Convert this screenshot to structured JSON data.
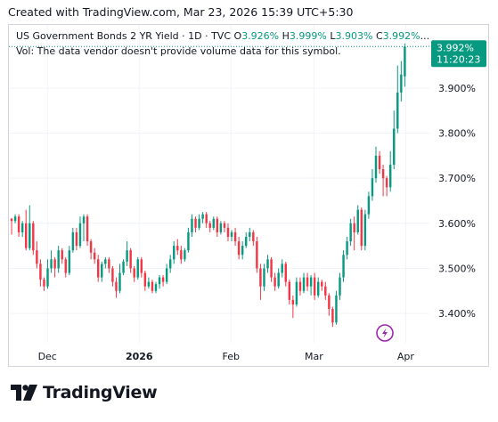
{
  "header": {
    "created_text": "Created with TradingView.com, Mar 23, 2026 15:39 UTC+5:30"
  },
  "legend": {
    "symbol": "US Government Bonds 2 YR Yield · 1D · TVC",
    "open_label": "O",
    "open_value": "3.926%",
    "high_label": "H",
    "high_value": "3.999%",
    "low_label": "L",
    "low_value": "3.903%",
    "close_label": "C",
    "close_value": "3.992%",
    "ellipsis": "..."
  },
  "volume_note": "Vol: The data vendor doesn't provide volume data for this symbol.",
  "price_badge": {
    "price": "3.992%",
    "countdown": "11:20:23"
  },
  "logo": {
    "text": "TradingView"
  },
  "colors": {
    "up": "#089981",
    "down": "#f23645",
    "grid": "#f0f3fa",
    "badge": "#089981",
    "lightning": "#9c27b0"
  },
  "icons": {
    "lightning": "lightning-icon",
    "logo": "tradingview-logo-icon"
  },
  "chart_data": {
    "type": "candlestick",
    "y_ticks": [
      "3.900%",
      "3.800%",
      "3.700%",
      "3.600%",
      "3.500%",
      "3.400%"
    ],
    "y_tick_values": [
      3.9,
      3.8,
      3.7,
      3.6,
      3.5,
      3.4
    ],
    "ylim": [
      3.335,
      4.04
    ],
    "x_ticks": [
      "Dec",
      "2026",
      "Feb",
      "Mar",
      "Apr"
    ],
    "x_tick_days": [
      13,
      44,
      75,
      103,
      134
    ],
    "x_range_days": [
      0,
      142
    ],
    "last_price": 3.992,
    "candles": [
      [
        3.61,
        3.605,
        3.612,
        3.575
      ],
      [
        3.605,
        3.615,
        3.62,
        3.6
      ],
      [
        3.615,
        3.58,
        3.62,
        3.57
      ],
      [
        3.58,
        3.6,
        3.605,
        3.57
      ],
      [
        3.6,
        3.545,
        3.63,
        3.54
      ],
      [
        3.545,
        3.6,
        3.64,
        3.54
      ],
      [
        3.6,
        3.54,
        3.605,
        3.53
      ],
      [
        3.54,
        3.51,
        3.56,
        3.5
      ],
      [
        3.51,
        3.475,
        3.52,
        3.46
      ],
      [
        3.475,
        3.46,
        3.48,
        3.45
      ],
      [
        3.46,
        3.5,
        3.52,
        3.455
      ],
      [
        3.5,
        3.52,
        3.54,
        3.49
      ],
      [
        3.52,
        3.5,
        3.525,
        3.48
      ],
      [
        3.5,
        3.54,
        3.55,
        3.49
      ],
      [
        3.54,
        3.52,
        3.545,
        3.51
      ],
      [
        3.52,
        3.49,
        3.525,
        3.48
      ],
      [
        3.49,
        3.54,
        3.55,
        3.485
      ],
      [
        3.54,
        3.58,
        3.59,
        3.535
      ],
      [
        3.58,
        3.55,
        3.59,
        3.54
      ],
      [
        3.55,
        3.6,
        3.615,
        3.545
      ],
      [
        3.6,
        3.615,
        3.62,
        3.56
      ],
      [
        3.615,
        3.56,
        3.62,
        3.55
      ],
      [
        3.56,
        3.535,
        3.565,
        3.52
      ],
      [
        3.535,
        3.52,
        3.545,
        3.51
      ],
      [
        3.52,
        3.48,
        3.53,
        3.47
      ],
      [
        3.48,
        3.51,
        3.515,
        3.47
      ],
      [
        3.51,
        3.52,
        3.525,
        3.5
      ],
      [
        3.52,
        3.5,
        3.525,
        3.49
      ],
      [
        3.5,
        3.47,
        3.505,
        3.46
      ],
      [
        3.47,
        3.45,
        3.48,
        3.435
      ],
      [
        3.45,
        3.49,
        3.51,
        3.445
      ],
      [
        3.49,
        3.515,
        3.52,
        3.485
      ],
      [
        3.515,
        3.54,
        3.56,
        3.505
      ],
      [
        3.54,
        3.5,
        3.545,
        3.49
      ],
      [
        3.5,
        3.48,
        3.505,
        3.47
      ],
      [
        3.48,
        3.52,
        3.525,
        3.475
      ],
      [
        3.52,
        3.49,
        3.525,
        3.48
      ],
      [
        3.49,
        3.46,
        3.495,
        3.45
      ],
      [
        3.46,
        3.47,
        3.48,
        3.455
      ],
      [
        3.47,
        3.45,
        3.475,
        3.445
      ],
      [
        3.45,
        3.465,
        3.47,
        3.445
      ],
      [
        3.465,
        3.48,
        3.485,
        3.455
      ],
      [
        3.48,
        3.47,
        3.485,
        3.46
      ],
      [
        3.47,
        3.5,
        3.51,
        3.465
      ],
      [
        3.5,
        3.52,
        3.53,
        3.49
      ],
      [
        3.52,
        3.55,
        3.56,
        3.51
      ],
      [
        3.55,
        3.54,
        3.565,
        3.53
      ],
      [
        3.54,
        3.52,
        3.55,
        3.51
      ],
      [
        3.52,
        3.54,
        3.545,
        3.515
      ],
      [
        3.54,
        3.58,
        3.59,
        3.535
      ],
      [
        3.58,
        3.61,
        3.62,
        3.57
      ],
      [
        3.61,
        3.59,
        3.615,
        3.58
      ],
      [
        3.59,
        3.61,
        3.62,
        3.585
      ],
      [
        3.61,
        3.62,
        3.625,
        3.6
      ],
      [
        3.62,
        3.6,
        3.625,
        3.59
      ],
      [
        3.6,
        3.59,
        3.605,
        3.58
      ],
      [
        3.59,
        3.61,
        3.615,
        3.585
      ],
      [
        3.61,
        3.58,
        3.615,
        3.57
      ],
      [
        3.58,
        3.6,
        3.605,
        3.575
      ],
      [
        3.6,
        3.59,
        3.605,
        3.58
      ],
      [
        3.59,
        3.57,
        3.6,
        3.56
      ],
      [
        3.57,
        3.58,
        3.585,
        3.56
      ],
      [
        3.58,
        3.56,
        3.59,
        3.55
      ],
      [
        3.56,
        3.53,
        3.57,
        3.52
      ],
      [
        3.53,
        3.55,
        3.56,
        3.52
      ],
      [
        3.55,
        3.57,
        3.58,
        3.545
      ],
      [
        3.57,
        3.58,
        3.59,
        3.56
      ],
      [
        3.58,
        3.56,
        3.585,
        3.55
      ],
      [
        3.56,
        3.5,
        3.57,
        3.49
      ],
      [
        3.5,
        3.46,
        3.51,
        3.43
      ],
      [
        3.46,
        3.5,
        3.51,
        3.45
      ],
      [
        3.5,
        3.52,
        3.53,
        3.49
      ],
      [
        3.52,
        3.48,
        3.525,
        3.47
      ],
      [
        3.48,
        3.46,
        3.49,
        3.45
      ],
      [
        3.46,
        3.49,
        3.5,
        3.455
      ],
      [
        3.49,
        3.51,
        3.52,
        3.48
      ],
      [
        3.51,
        3.47,
        3.515,
        3.46
      ],
      [
        3.47,
        3.43,
        3.475,
        3.42
      ],
      [
        3.43,
        3.42,
        3.44,
        3.39
      ],
      [
        3.42,
        3.47,
        3.48,
        3.415
      ],
      [
        3.47,
        3.45,
        3.48,
        3.44
      ],
      [
        3.45,
        3.48,
        3.49,
        3.445
      ],
      [
        3.48,
        3.46,
        3.49,
        3.45
      ],
      [
        3.46,
        3.48,
        3.485,
        3.44
      ],
      [
        3.48,
        3.44,
        3.49,
        3.43
      ],
      [
        3.44,
        3.47,
        3.48,
        3.435
      ],
      [
        3.47,
        3.46,
        3.475,
        3.45
      ],
      [
        3.46,
        3.44,
        3.47,
        3.43
      ],
      [
        3.44,
        3.41,
        3.445,
        3.395
      ],
      [
        3.41,
        3.38,
        3.415,
        3.37
      ],
      [
        3.38,
        3.44,
        3.45,
        3.375
      ],
      [
        3.44,
        3.48,
        3.49,
        3.43
      ],
      [
        3.48,
        3.53,
        3.54,
        3.47
      ],
      [
        3.53,
        3.56,
        3.57,
        3.52
      ],
      [
        3.56,
        3.6,
        3.61,
        3.55
      ],
      [
        3.6,
        3.58,
        3.615,
        3.54
      ],
      [
        3.58,
        3.63,
        3.64,
        3.575
      ],
      [
        3.63,
        3.55,
        3.635,
        3.54
      ],
      [
        3.55,
        3.62,
        3.63,
        3.54
      ],
      [
        3.62,
        3.66,
        3.67,
        3.61
      ],
      [
        3.66,
        3.7,
        3.72,
        3.65
      ],
      [
        3.7,
        3.75,
        3.77,
        3.69
      ],
      [
        3.75,
        3.72,
        3.76,
        3.71
      ],
      [
        3.72,
        3.7,
        3.73,
        3.66
      ],
      [
        3.7,
        3.68,
        3.705,
        3.66
      ],
      [
        3.68,
        3.73,
        3.76,
        3.67
      ],
      [
        3.73,
        3.81,
        3.85,
        3.72
      ],
      [
        3.81,
        3.89,
        3.95,
        3.8
      ],
      [
        3.89,
        3.93,
        3.96,
        3.87
      ],
      [
        3.926,
        3.992,
        3.999,
        3.903
      ]
    ]
  }
}
